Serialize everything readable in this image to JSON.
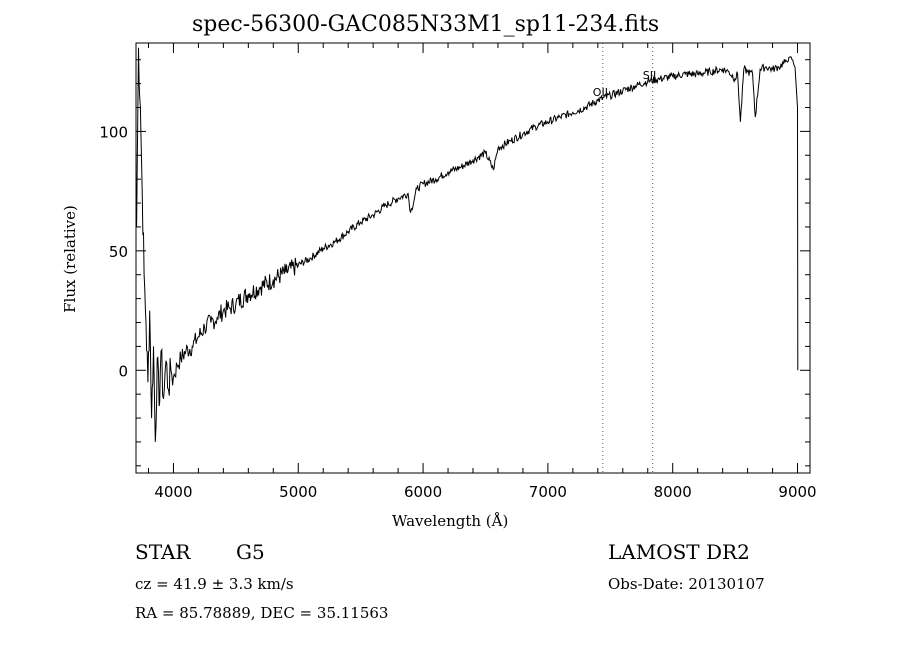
{
  "chart_data": {
    "type": "line",
    "title": "spec-56300-GAC085N33M1_sp11-234.fits",
    "xlabel": "Wavelength (Å)",
    "ylabel": "Flux (relative)",
    "xlim": [
      3700,
      9100
    ],
    "ylim": [
      -43,
      137
    ],
    "xticks": [
      4000,
      5000,
      6000,
      7000,
      8000,
      9000
    ],
    "yticks": [
      0,
      50,
      100
    ],
    "xtick_labels": [
      "4000",
      "5000",
      "6000",
      "7000",
      "8000",
      "9000"
    ],
    "ytick_labels": [
      "0",
      "50",
      "100"
    ],
    "grid": false,
    "series": [
      {
        "x": [
          3705,
          3720,
          3735,
          3750,
          3765,
          3780,
          3795,
          3810,
          3825,
          3840,
          3855,
          3870,
          3885,
          3900,
          3920,
          3940,
          3960,
          3980,
          4000,
          4030,
          4060,
          4100,
          4150,
          4200,
          4250,
          4300,
          4350,
          4400,
          4450,
          4500,
          4600,
          4700,
          4800,
          4900,
          5000,
          5100,
          5200,
          5300,
          5400,
          5500,
          5600,
          5700,
          5800,
          5880,
          5900,
          5950,
          6000,
          6100,
          6200,
          6300,
          6400,
          6500,
          6563,
          6600,
          6700,
          6800,
          6900,
          7000,
          7100,
          7200,
          7300,
          7400,
          7500,
          7600,
          7700,
          7800,
          7900,
          8000,
          8100,
          8200,
          8300,
          8400,
          8450,
          8498,
          8520,
          8542,
          8570,
          8600,
          8640,
          8662,
          8700,
          8750,
          8800,
          8850,
          8900,
          8950,
          8980,
          9000,
          9002
        ],
        "values": [
          60,
          135,
          110,
          75,
          40,
          20,
          -5,
          25,
          -20,
          10,
          -30,
          5,
          -15,
          8,
          -12,
          4,
          -8,
          0,
          -3,
          2,
          5,
          8,
          10,
          14,
          18,
          20,
          22,
          25,
          26,
          28,
          32,
          35,
          38,
          41,
          44,
          47,
          51,
          54,
          58,
          62,
          65,
          69,
          72,
          74,
          66,
          76,
          78,
          80,
          83,
          85,
          88,
          91,
          84,
          93,
          96,
          99,
          102,
          104,
          106,
          108,
          110,
          113,
          115,
          117,
          119,
          121,
          122,
          123,
          124,
          124,
          125,
          126,
          125,
          122,
          124,
          104,
          126,
          125,
          124,
          106,
          126,
          127,
          126,
          127,
          129,
          131,
          127,
          110,
          0
        ]
      }
    ],
    "annotations": [
      {
        "label": "OII",
        "x": 7440
      },
      {
        "label": "SII",
        "x": 7840
      }
    ]
  },
  "info": {
    "object_class": "STAR",
    "subclass": "G5",
    "survey": "LAMOST DR2",
    "cz": "cz = 41.9 ± 3.3 km/s",
    "obs_date": "Obs-Date: 20130107",
    "coords": "RA =  85.78889, DEC =  35.11563"
  }
}
